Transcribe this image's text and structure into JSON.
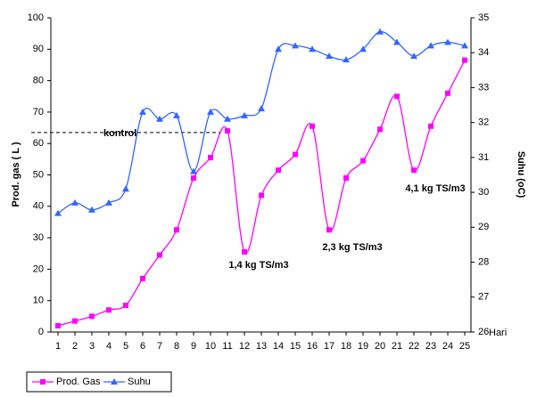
{
  "chart_data": {
    "type": "line",
    "categories": [
      "1",
      "2",
      "3",
      "4",
      "5",
      "6",
      "7",
      "8",
      "9",
      "10",
      "11",
      "12",
      "13",
      "14",
      "15",
      "16",
      "17",
      "18",
      "19",
      "20",
      "21",
      "22",
      "23",
      "24",
      "25"
    ],
    "x_label": "Hari",
    "y_label": "Prod. gas ( L )",
    "y2_label": "Suhu (oC)",
    "ylim": [
      0,
      100
    ],
    "yticks": [
      0,
      10,
      20,
      30,
      40,
      50,
      60,
      70,
      80,
      90,
      100
    ],
    "y2lim": [
      26,
      35
    ],
    "y2ticks": [
      26,
      27,
      28,
      29,
      30,
      31,
      32,
      33,
      34,
      35
    ],
    "series": [
      {
        "name": "Prod. Gas",
        "color": "#ff00ff",
        "marker": "square",
        "values": [
          2,
          3.5,
          5,
          7,
          8.5,
          17,
          24.5,
          32.5,
          49,
          55.5,
          64,
          25.5,
          43.5,
          51.5,
          56.5,
          65.5,
          32.5,
          49,
          54.5,
          64.5,
          75,
          51.5,
          65.5,
          76,
          86.5
        ]
      },
      {
        "name": "Suhu",
        "color": "#3366ff",
        "marker": "triangle",
        "axis": "y2",
        "values": [
          29.4,
          29.7,
          29.5,
          29.7,
          30.1,
          32.3,
          32.1,
          32.2,
          30.6,
          32.3,
          32.1,
          32.2,
          32.4,
          34.1,
          34.2,
          34.1,
          33.9,
          33.8,
          34.1,
          34.6,
          34.3,
          33.9,
          34.2,
          34.3,
          34.2
        ]
      }
    ],
    "reference_line": {
      "label": "kontrol",
      "value": 63.5
    },
    "annotations": [
      "1,4 kg TS/m3",
      "2,3 kg TS/m3",
      "4,1 kg TS/m3"
    ],
    "legend": "bottom-left",
    "grid": false
  }
}
